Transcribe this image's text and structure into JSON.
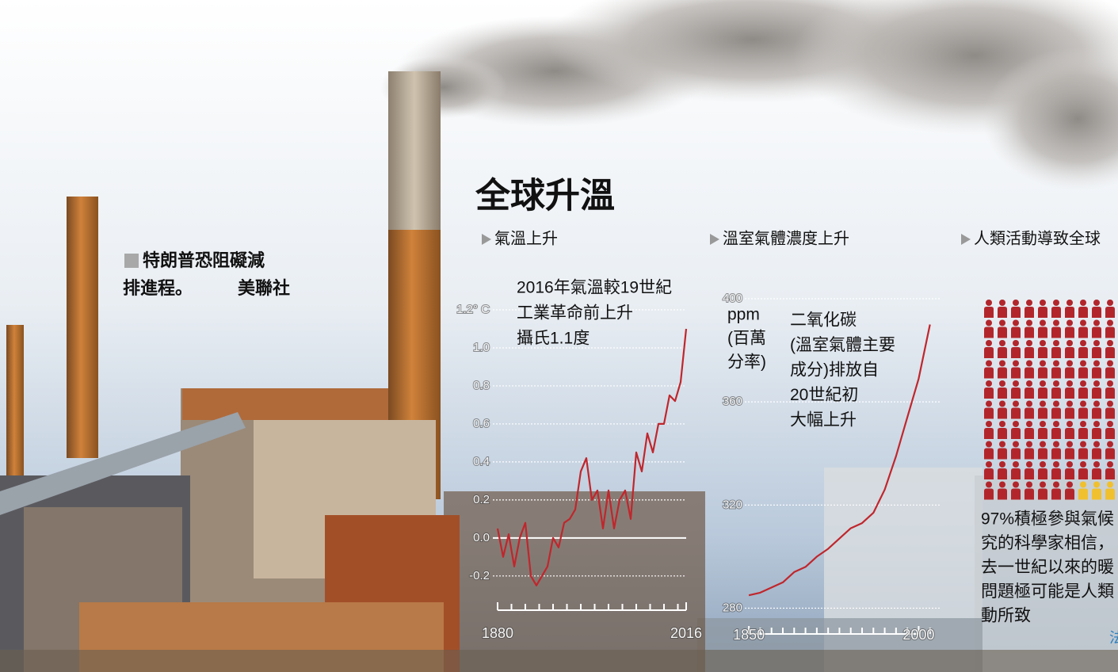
{
  "title": "全球升溫",
  "photo_caption": {
    "lines": [
      "特朗普恐阻礙減",
      "排進程。"
    ],
    "credit": "美聯社"
  },
  "source": "法",
  "chart_data": [
    {
      "type": "line",
      "subtitle": "氣溫上升",
      "annotation": [
        "2016年氣溫較19世紀",
        "工業革命前上升",
        "攝氏1.1度"
      ],
      "x": [
        1880,
        1884,
        1888,
        1892,
        1896,
        1900,
        1904,
        1908,
        1912,
        1916,
        1920,
        1924,
        1928,
        1932,
        1936,
        1940,
        1944,
        1948,
        1952,
        1956,
        1960,
        1964,
        1968,
        1972,
        1976,
        1980,
        1984,
        1988,
        1992,
        1996,
        2000,
        2004,
        2008,
        2012,
        2016
      ],
      "series": [
        {
          "color": "#c0262c",
          "values": [
            0.05,
            -0.1,
            0.02,
            -0.15,
            0.0,
            0.08,
            -0.2,
            -0.25,
            -0.2,
            -0.15,
            0.0,
            -0.05,
            0.08,
            0.1,
            0.15,
            0.35,
            0.42,
            0.2,
            0.25,
            0.05,
            0.25,
            0.05,
            0.2,
            0.25,
            0.1,
            0.45,
            0.35,
            0.55,
            0.45,
            0.6,
            0.6,
            0.75,
            0.72,
            0.82,
            1.1
          ]
        }
      ],
      "xlim": [
        1880,
        2016
      ],
      "xticks": [
        1880,
        2016
      ],
      "xminorticks": [
        1890,
        1900,
        1910,
        1920,
        1930,
        1940,
        1950,
        1960,
        1970,
        1980,
        1990,
        2000,
        2010
      ],
      "ylim": [
        -0.38,
        1.2
      ],
      "yticks": [
        -0.2,
        {
          "value": 0,
          "label": "0.0"
        },
        0.2,
        0.4,
        0.6,
        0.8,
        {
          "value": 1.0,
          "label": "1.0"
        },
        {
          "value": 1.2,
          "label": "1.2° C"
        }
      ],
      "grid": true
    },
    {
      "type": "line",
      "subtitle": "溫室氣體濃度上升",
      "ylabel": [
        "ppm",
        "(百萬",
        "分率)"
      ],
      "annotation": [
        "二氧化碳",
        "(溫室氣體主要",
        "成分)排放自",
        "20世紀初",
        "大幅上升"
      ],
      "x": [
        1850,
        1860,
        1870,
        1880,
        1890,
        1900,
        1910,
        1920,
        1930,
        1940,
        1950,
        1960,
        1970,
        1980,
        1990,
        2000,
        2010
      ],
      "series": [
        {
          "color": "#c0262c",
          "values": [
            285,
            286,
            288,
            290,
            294,
            296,
            300,
            303,
            307,
            311,
            313,
            317,
            326,
            339,
            354,
            369,
            390
          ]
        }
      ],
      "xlim": [
        1845,
        2020
      ],
      "xticks": [
        1850,
        2000
      ],
      "xminorticks": [
        1860,
        1870,
        1880,
        1890,
        1900,
        1910,
        1920,
        1930,
        1940,
        1950,
        1960,
        1970,
        1980,
        1990,
        2010
      ],
      "ylim": [
        270,
        400
      ],
      "yticks": [
        280,
        320,
        360,
        400
      ],
      "grid": true
    },
    {
      "type": "pictogram",
      "subtitle": "人類活動導致全球",
      "values": [
        97,
        3
      ],
      "colors": [
        "#b2262b",
        "#f0c02e"
      ],
      "caption": [
        "97%積極參與氣候",
        "究的科學家相信，",
        "去一世紀以來的暖",
        "問題極可能是人類",
        "動所致"
      ]
    }
  ]
}
